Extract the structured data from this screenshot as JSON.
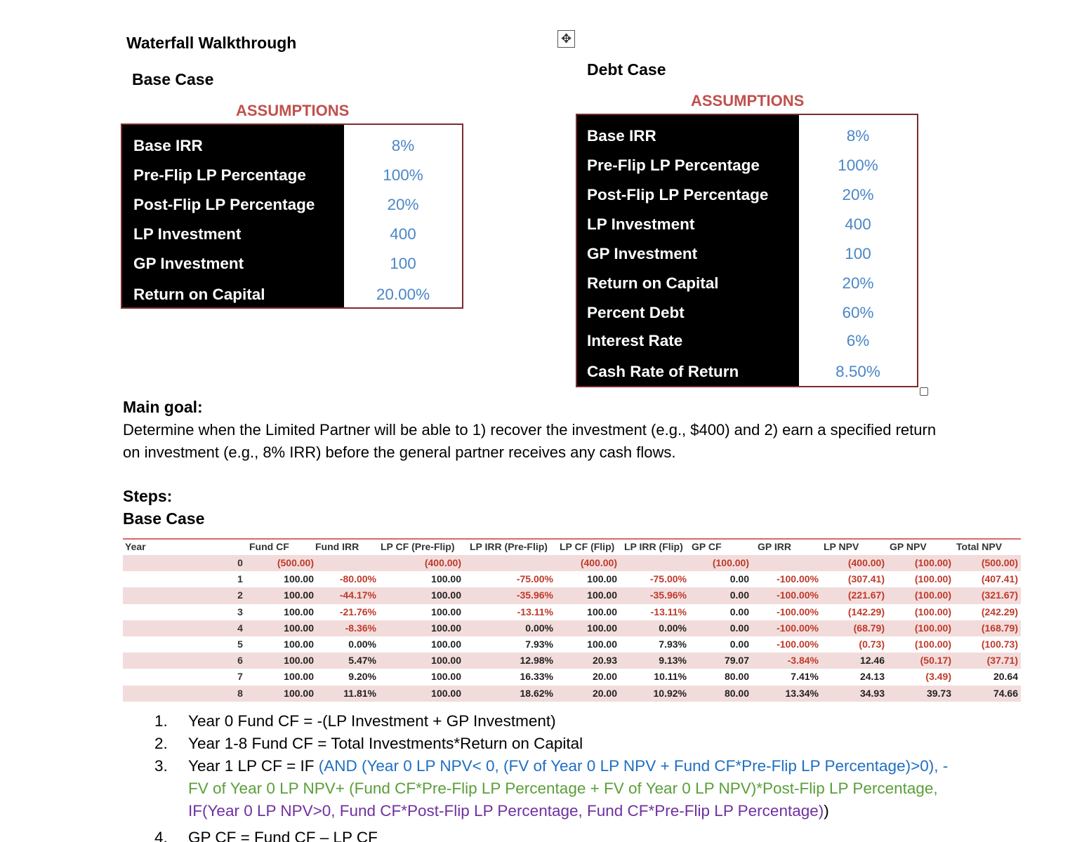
{
  "title": "Waterfall Walkthrough",
  "base_case": {
    "heading": "Base Case",
    "assumptions_title": "ASSUMPTIONS",
    "rows": [
      {
        "label": "Base IRR",
        "value": "8%"
      },
      {
        "label": "Pre-Flip LP Percentage",
        "value": "100%"
      },
      {
        "label": "Post-Flip LP Percentage",
        "value": "20%"
      },
      {
        "label": "LP Investment",
        "value": "400"
      },
      {
        "label": "GP Investment",
        "value": "100"
      },
      {
        "label": "Return on Capital",
        "value": "20.00%"
      }
    ]
  },
  "debt_case": {
    "heading": "Debt Case",
    "assumptions_title": "ASSUMPTIONS",
    "rows": [
      {
        "label": "Base IRR",
        "value": "8%"
      },
      {
        "label": "Pre-Flip LP Percentage",
        "value": "100%"
      },
      {
        "label": "Post-Flip LP Percentage",
        "value": "20%"
      },
      {
        "label": "LP Investment",
        "value": "400"
      },
      {
        "label": "GP Investment",
        "value": "100"
      },
      {
        "label": "Return on Capital",
        "value": "20%"
      },
      {
        "label": "Percent Debt",
        "value": "60%"
      },
      {
        "label": "Interest Rate",
        "value": "6%"
      },
      {
        "label": "Cash Rate of Return",
        "value": "8.50%"
      }
    ]
  },
  "main_goal": {
    "heading": "Main goal:",
    "text": "Determine when the Limited Partner will be able to 1) recover the investment (e.g., $400) and 2) earn a specified return on investment (e.g., 8% IRR) before the general partner receives any cash flows."
  },
  "steps": {
    "heading": "Steps:",
    "subheading": "Base Case"
  },
  "table": {
    "headers": [
      "Year",
      "Fund CF",
      "Fund IRR",
      "LP CF (Pre-Flip)",
      "LP IRR (Pre-Flip)",
      "LP CF (Flip)",
      "LP IRR (Flip)",
      "GP CF",
      "GP IRR",
      "LP NPV",
      "GP NPV",
      "Total NPV"
    ],
    "rows": [
      [
        "0",
        "(500.00)",
        "",
        "(400.00)",
        "",
        "(400.00)",
        "",
        "(100.00)",
        "",
        "(400.00)",
        "(100.00)",
        "(500.00)"
      ],
      [
        "1",
        "100.00",
        "-80.00%",
        "100.00",
        "-75.00%",
        "100.00",
        "-75.00%",
        "0.00",
        "-100.00%",
        "(307.41)",
        "(100.00)",
        "(407.41)"
      ],
      [
        "2",
        "100.00",
        "-44.17%",
        "100.00",
        "-35.96%",
        "100.00",
        "-35.96%",
        "0.00",
        "-100.00%",
        "(221.67)",
        "(100.00)",
        "(321.67)"
      ],
      [
        "3",
        "100.00",
        "-21.76%",
        "100.00",
        "-13.11%",
        "100.00",
        "-13.11%",
        "0.00",
        "-100.00%",
        "(142.29)",
        "(100.00)",
        "(242.29)"
      ],
      [
        "4",
        "100.00",
        "-8.36%",
        "100.00",
        "0.00%",
        "100.00",
        "0.00%",
        "0.00",
        "-100.00%",
        "(68.79)",
        "(100.00)",
        "(168.79)"
      ],
      [
        "5",
        "100.00",
        "0.00%",
        "100.00",
        "7.93%",
        "100.00",
        "7.93%",
        "0.00",
        "-100.00%",
        "(0.73)",
        "(100.00)",
        "(100.73)"
      ],
      [
        "6",
        "100.00",
        "5.47%",
        "100.00",
        "12.98%",
        "20.93",
        "9.13%",
        "79.07",
        "-3.84%",
        "12.46",
        "(50.17)",
        "(37.71)"
      ],
      [
        "7",
        "100.00",
        "9.20%",
        "100.00",
        "16.33%",
        "20.00",
        "10.11%",
        "80.00",
        "7.41%",
        "24.13",
        "(3.49)",
        "20.64"
      ],
      [
        "8",
        "100.00",
        "11.81%",
        "100.00",
        "18.62%",
        "20.00",
        "10.92%",
        "80.00",
        "13.34%",
        "34.93",
        "39.73",
        "74.66"
      ]
    ]
  },
  "step_list": [
    {
      "num": "1.",
      "text": "Year 0 Fund CF = -(LP Investment + GP Investment)"
    },
    {
      "num": "2.",
      "text": "Year 1-8 Fund CF = Total Investments*Return on Capital"
    },
    {
      "num": "3.",
      "prefix": "Year 1 LP CF = IF ",
      "blue": "(AND (Year 0 LP NPV< 0, (FV of Year 0 LP NPV + Fund CF*Pre-Flip LP Percentage)>0), -",
      "green": "FV of Year 0 LP NPV+ (Fund CF*Pre-Flip LP Percentage + FV of Year 0 LP NPV)*Post-Flip LP Percentage,",
      "purple": "IF(Year 0 LP NPV>0, Fund CF*Post-Flip LP Percentage, Fund CF*Pre-Flip LP Percentage)",
      "suffix": ")"
    },
    {
      "num": "4.",
      "text": "GP CF = Fund CF – LP CF"
    }
  ],
  "colors": {
    "accent_red": "#c0504d",
    "value_blue": "#4a86c8",
    "row_shade": "#f2dcdb",
    "negative_red": "#c0392b"
  },
  "icons": {
    "move": "move-handle-icon",
    "resize": "resize-handle-icon"
  }
}
